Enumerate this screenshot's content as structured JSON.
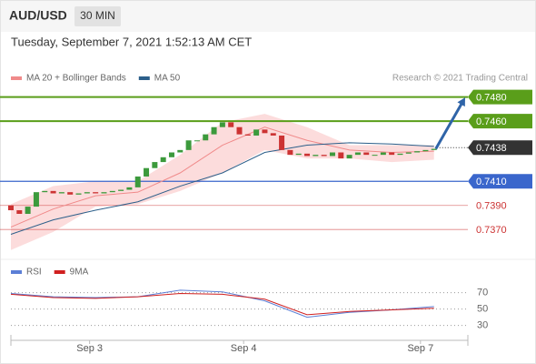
{
  "chart_data": {
    "type": "candlestick",
    "symbol": "AUD/USD",
    "timeframe": "30 MIN",
    "timestamp": "Tuesday, September 7, 2021 1:52:13 AM CET",
    "source": "Research © 2021 Trading Central",
    "open": 0.739,
    "close": [
      0.7386,
      0.7383,
      0.7389,
      0.7401,
      0.7402,
      0.74,
      0.7401,
      0.7399,
      0.74,
      0.7401,
      0.74,
      0.7401,
      0.7402,
      0.7403,
      0.7405,
      0.7414,
      0.7421,
      0.7426,
      0.743,
      0.7434,
      0.7436,
      0.7444,
      0.7444,
      0.7449,
      0.7455,
      0.7459,
      0.7455,
      0.7449,
      0.7448,
      0.7453,
      0.745,
      0.7448,
      0.7436,
      0.7432,
      0.7433,
      0.7431,
      0.7432,
      0.7431,
      0.7434,
      0.7429,
      0.7432,
      0.7434,
      0.7432,
      0.7432,
      0.7434,
      0.7432,
      0.7433,
      0.7434,
      0.7435,
      0.7436,
      0.7437
    ],
    "up_color": "#3c9a3c",
    "down_color": "#cc3333",
    "xlim": [
      0,
      54
    ],
    "xticks": [
      {
        "value": 9.3,
        "label": "Sep 3"
      },
      {
        "value": 27.5,
        "label": "Sep 4"
      },
      {
        "value": 48.4,
        "label": "Sep 7"
      }
    ],
    "ylim": [
      0.7349,
      0.7485
    ],
    "overlays": [
      {
        "name": "MA 20 + Bollinger Bands",
        "color": "#f08a8a",
        "band_color": "#fbd3d3",
        "x": [
          0,
          5,
          10,
          15,
          20,
          25,
          30,
          35,
          40,
          45,
          50
        ],
        "values": [
          0.7372,
          0.7387,
          0.7398,
          0.7401,
          0.7417,
          0.744,
          0.7455,
          0.7444,
          0.7436,
          0.7434,
          0.7435
        ],
        "upper": [
          0.7391,
          0.7406,
          0.741,
          0.741,
          0.7432,
          0.7459,
          0.7466,
          0.7455,
          0.744,
          0.744,
          0.744
        ],
        "lower": [
          0.7353,
          0.7368,
          0.7389,
          0.7391,
          0.7402,
          0.7417,
          0.7436,
          0.7429,
          0.7429,
          0.7426,
          0.7428
        ]
      },
      {
        "name": "MA 50",
        "color": "#2c5f8a",
        "x": [
          0,
          5,
          10,
          15,
          20,
          25,
          30,
          35,
          40,
          45,
          50
        ],
        "values": [
          0.7366,
          0.7378,
          0.7386,
          0.7393,
          0.7406,
          0.7417,
          0.7434,
          0.744,
          0.7442,
          0.7441,
          0.7439
        ]
      }
    ],
    "levels": [
      {
        "value": 0.748,
        "label": "0.7480",
        "color": "#5a9e1a",
        "box": true
      },
      {
        "value": 0.746,
        "label": "0.7460",
        "color": "#5a9e1a",
        "box": true
      },
      {
        "value": 0.7438,
        "label": "0.7438",
        "color": "#333333",
        "box": true
      },
      {
        "value": 0.741,
        "label": "0.7410",
        "color": "#3a66cc",
        "box": true
      },
      {
        "value": 0.739,
        "label": "0.7390",
        "color": "#cc3333",
        "box": false
      },
      {
        "value": 0.737,
        "label": "0.7370",
        "color": "#cc3333",
        "box": false
      }
    ],
    "rsi": {
      "ylim": [
        14,
        94
      ],
      "yticks": [
        70,
        50,
        30
      ],
      "series": [
        {
          "name": "RSI",
          "color": "#5b7fd6",
          "x": [
            0,
            5,
            10,
            15,
            20,
            25,
            30,
            35,
            40,
            45,
            50
          ],
          "values": [
            69,
            65,
            64,
            65,
            73,
            71,
            60,
            40,
            46,
            49,
            53
          ]
        },
        {
          "name": "9MA",
          "color": "#d02020",
          "x": [
            0,
            5,
            10,
            15,
            20,
            25,
            30,
            35,
            40,
            45,
            50
          ],
          "values": [
            68,
            64,
            63,
            65,
            69,
            68,
            62,
            43,
            47,
            49,
            51
          ]
        }
      ]
    }
  }
}
